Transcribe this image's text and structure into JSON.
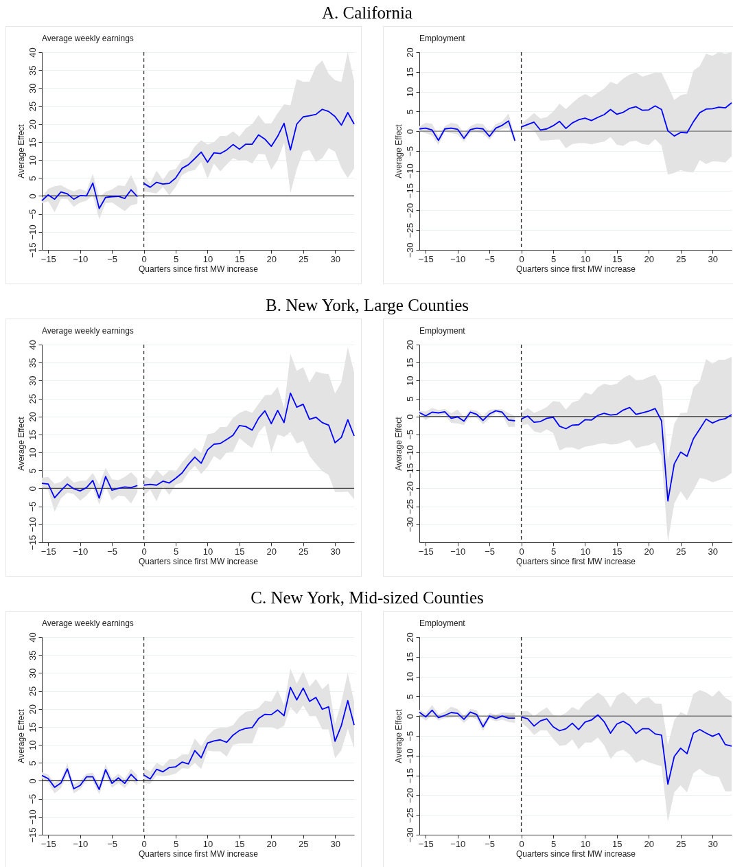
{
  "chart_data": [
    {
      "type": "line",
      "title": "A. California",
      "subtitle": "Average weekly earnings",
      "xlabel": "Quarters since first MW increase",
      "ylabel": "Average Effect",
      "xlim": [
        -16,
        33
      ],
      "xticks": [
        -15,
        -10,
        -5,
        0,
        5,
        10,
        15,
        20,
        25,
        30
      ],
      "ylim": [
        -15,
        40
      ],
      "yticks": [
        -15,
        -10,
        -5,
        0,
        5,
        10,
        15,
        20,
        25,
        30,
        35,
        40
      ],
      "grid": "y",
      "line_style": "solid",
      "ref_lines": [
        {
          "axis": "x",
          "value": 0,
          "color": "#333333",
          "line_style": "dashed"
        },
        {
          "axis": "y",
          "value": 0,
          "color": "#222222"
        }
      ],
      "series": [
        {
          "color": "#0000ff",
          "x": [
            -16,
            -15,
            -14,
            -13,
            -12,
            -11,
            -10,
            -9,
            -8,
            -7,
            -6,
            -5,
            -4,
            -3,
            -2,
            -1
          ],
          "values": [
            -1.3,
            0.3,
            -0.9,
            1.1,
            0.6,
            -0.9,
            0.1,
            0,
            3.6,
            -3.5,
            -0.4,
            -0.2,
            -0.1,
            -0.7,
            1.7,
            -0.2
          ],
          "lower": [
            -2,
            -1.5,
            -4.5,
            -0.8,
            -0.8,
            -3,
            -1.8,
            -1.3,
            0.3,
            -6.5,
            -2,
            -1.8,
            -3,
            -4.2,
            -2.6,
            -2.2
          ],
          "upper": [
            -0.5,
            2,
            2.7,
            3,
            2,
            1.3,
            2,
            1.3,
            6.2,
            -0.5,
            1.2,
            1.8,
            3,
            2.7,
            5.8,
            2
          ]
        },
        {
          "color": "#0000ff",
          "x": [
            0,
            1,
            2,
            3,
            4,
            5,
            6,
            7,
            8,
            9,
            10,
            11,
            12,
            13,
            14,
            15,
            16,
            17,
            18,
            19,
            20,
            21,
            22,
            23,
            24,
            25,
            26,
            27,
            28,
            29,
            30,
            31,
            32,
            33
          ],
          "values": [
            3.5,
            2.4,
            3.8,
            3.3,
            3.5,
            5,
            7.7,
            8.7,
            10.4,
            12.2,
            9.4,
            12,
            11.8,
            12.8,
            14.3,
            13,
            14.4,
            14.4,
            17,
            15.8,
            13.8,
            16.6,
            20.2,
            12.8,
            20,
            22,
            22.3,
            22.7,
            24.1,
            23.5,
            22.1,
            19.7,
            23.2,
            20
          ],
          "lower": [
            1.2,
            1,
            0.7,
            2.5,
            0.2,
            2.5,
            5.8,
            6.8,
            7.2,
            9.5,
            4.8,
            9,
            6.8,
            8.8,
            10.5,
            9.8,
            10,
            9,
            11.7,
            11.6,
            7.3,
            10,
            14.8,
            0.8,
            7.5,
            12.3,
            12.8,
            9.5,
            10.5,
            13.3,
            12.3,
            7.8,
            5,
            7.7
          ],
          "upper": [
            5.8,
            3.5,
            7,
            4.5,
            7,
            7.5,
            10,
            10.8,
            13.8,
            15.5,
            14.3,
            15,
            16.7,
            16.7,
            18,
            16.5,
            18.8,
            20,
            22.5,
            20.2,
            20.2,
            23,
            25.5,
            25.2,
            32.5,
            31.8,
            31.8,
            36,
            37.7,
            34,
            32.2,
            31.7,
            40,
            32
          ]
        }
      ]
    },
    {
      "type": "line",
      "subtitle": "Employment",
      "xlabel": "Quarters since first MW increase",
      "ylabel": "Average Effect",
      "xlim": [
        -16,
        33
      ],
      "xticks": [
        -15,
        -10,
        -5,
        0,
        5,
        10,
        15,
        20,
        25,
        30
      ],
      "ylim": [
        -30,
        20
      ],
      "yticks": [
        -30,
        -25,
        -20,
        -15,
        -10,
        -5,
        0,
        5,
        10,
        15,
        20
      ],
      "grid": "y",
      "line_style": "solid",
      "ref_lines": [
        {
          "axis": "x",
          "value": 0,
          "color": "#222222",
          "line_style": "dashed"
        },
        {
          "axis": "y",
          "value": 0,
          "color": "#777777"
        }
      ],
      "series": [
        {
          "color": "#0000ff",
          "x": [
            -16,
            -15,
            -14,
            -13,
            -12,
            -11,
            -10,
            -9,
            -8,
            -7,
            -6,
            -5,
            -4,
            -3,
            -2,
            -1
          ],
          "values": [
            0.6,
            0.8,
            0.3,
            -2.3,
            0.6,
            0.8,
            0.5,
            -1.8,
            0.4,
            0.8,
            0.6,
            -1.3,
            0.8,
            1.5,
            2.6,
            -2.4
          ],
          "lower": [
            0,
            -0.5,
            -1.1,
            -3.5,
            -0.1,
            -0.5,
            -0.8,
            -2.6,
            -0.4,
            -0.3,
            -0.6,
            -2.2,
            -0.2,
            0.6,
            0.8,
            -3
          ],
          "upper": [
            1.3,
            2.1,
            1.9,
            -1.2,
            1.3,
            2.1,
            1.8,
            -0.5,
            1.3,
            2,
            1.8,
            -0.2,
            1.8,
            2.5,
            4.5,
            -1.5
          ]
        },
        {
          "color": "#0000ff",
          "x": [
            0,
            1,
            2,
            3,
            4,
            5,
            6,
            7,
            8,
            9,
            10,
            11,
            12,
            13,
            14,
            15,
            16,
            17,
            18,
            19,
            20,
            21,
            22,
            23,
            24,
            25,
            26,
            27,
            28,
            29,
            30,
            31,
            32,
            33
          ],
          "values": [
            1.1,
            1.7,
            2.3,
            0.3,
            0.6,
            1.4,
            2.5,
            0.7,
            2.1,
            2.9,
            3.3,
            2.7,
            3.5,
            4.2,
            5.5,
            4.3,
            4.8,
            5.8,
            6.2,
            5.3,
            5.4,
            6.4,
            5.5,
            0.1,
            -1.2,
            -0.3,
            -0.4,
            2.4,
            4.7,
            5.6,
            5.7,
            6.1,
            5.9,
            7.2
          ],
          "lower": [
            0.5,
            0.5,
            0.2,
            -2.4,
            -2.3,
            -2.2,
            -2.1,
            -4.3,
            -3.2,
            -3,
            -3,
            -3.3,
            -2.9,
            -2.6,
            -1.5,
            -3.4,
            -3.7,
            -2.6,
            -2.4,
            -3.2,
            -3.5,
            -2,
            -3.6,
            -11,
            -10.5,
            -9.8,
            -10.3,
            -10.4,
            -7.3,
            -8.3,
            -7.6,
            -7.7,
            -7.9,
            -6.3
          ],
          "upper": [
            2,
            3.2,
            4.6,
            3.2,
            3.6,
            5,
            7,
            5.6,
            7.1,
            8.5,
            9.4,
            8.6,
            9.7,
            10.8,
            12.5,
            11.9,
            13.3,
            14.3,
            14.9,
            13.8,
            14.3,
            14.9,
            14.8,
            11.5,
            7.9,
            9.1,
            9.5,
            15.3,
            16.5,
            19.6,
            19.1,
            20,
            19.6,
            20
          ]
        }
      ]
    },
    {
      "type": "line",
      "title": "B. New York, Large Counties",
      "subtitle": "Average weekly earnings",
      "xlabel": "Quarters since first MW increase",
      "ylabel": "Average Effect",
      "xlim": [
        -16,
        33
      ],
      "xticks": [
        -15,
        -10,
        -5,
        0,
        5,
        10,
        15,
        20,
        25,
        30
      ],
      "ylim": [
        -15,
        40
      ],
      "yticks": [
        -15,
        -10,
        -5,
        0,
        5,
        10,
        15,
        20,
        25,
        30,
        35,
        40
      ],
      "grid": "y",
      "line_style": "solid",
      "ref_lines": [
        {
          "axis": "x",
          "value": 0,
          "color": "#333333",
          "line_style": "dashed"
        },
        {
          "axis": "y",
          "value": 0,
          "color": "#444444"
        }
      ],
      "series": [
        {
          "color": "#0000ff",
          "x": [
            -16,
            -15,
            -14,
            -13,
            -12,
            -11,
            -10,
            -9,
            -8,
            -7,
            -6,
            -5,
            -4,
            -3,
            -2,
            -1
          ],
          "values": [
            1.4,
            1.2,
            -2.6,
            -0.6,
            1.2,
            -0.1,
            -0.7,
            0.2,
            2.2,
            -2.7,
            3.3,
            -0.5,
            0,
            0.4,
            0.2,
            0.8
          ],
          "lower": [
            0,
            -0.5,
            -6.5,
            -2.8,
            -1.2,
            -1.6,
            -3.4,
            -2,
            0.2,
            -4.5,
            0.5,
            -3.3,
            -2,
            -2.2,
            -4.2,
            -1
          ],
          "upper": [
            3,
            3.2,
            1.3,
            1.8,
            3.5,
            1.6,
            2.1,
            2.2,
            4.3,
            1,
            5.7,
            2.5,
            2.3,
            3.2,
            4.5,
            2.7
          ]
        },
        {
          "color": "#0000ff",
          "x": [
            0,
            1,
            2,
            3,
            4,
            5,
            6,
            7,
            8,
            9,
            10,
            11,
            12,
            13,
            14,
            15,
            16,
            17,
            18,
            19,
            20,
            21,
            22,
            23,
            24,
            25,
            26,
            27,
            28,
            29,
            30,
            31,
            32,
            33
          ],
          "values": [
            0.9,
            1.1,
            0.9,
            2,
            1.5,
            2.8,
            4.3,
            6.7,
            8.7,
            7,
            10.7,
            12.3,
            12.5,
            13.6,
            14.8,
            17.5,
            17.2,
            16.2,
            19.5,
            21.6,
            18,
            21.7,
            18.3,
            26.5,
            22.6,
            23.4,
            19.2,
            19.8,
            18.3,
            17.6,
            12.7,
            14.2,
            19.1,
            14.6
          ],
          "lower": [
            -2,
            -0.3,
            -3.6,
            0.5,
            -1.8,
            1,
            1.7,
            4.5,
            6.3,
            4,
            6,
            9,
            7.8,
            10,
            10.2,
            14,
            12.5,
            11.2,
            15.5,
            17.5,
            10,
            15.1,
            14.3,
            15.7,
            12.5,
            13.2,
            9,
            6.8,
            4.8,
            3.7,
            -1,
            -1,
            -0.9,
            -3
          ],
          "upper": [
            3.6,
            2.6,
            5.2,
            3.4,
            5,
            4.7,
            7.2,
            9.3,
            11.3,
            9.8,
            15.1,
            15.4,
            17.1,
            17.1,
            19.6,
            21,
            21.7,
            21,
            23.5,
            25.9,
            26,
            28.2,
            22.4,
            37.4,
            32.7,
            33.7,
            29.4,
            32.5,
            32,
            31.8,
            26.4,
            29.5,
            39.3,
            32.2
          ]
        }
      ]
    },
    {
      "type": "line",
      "subtitle": "Employment",
      "xlabel": "Quarters since first MW increase",
      "ylabel": "Average Effect",
      "xlim": [
        -16,
        33
      ],
      "xticks": [
        -15,
        -10,
        -5,
        0,
        5,
        10,
        15,
        20,
        25,
        30
      ],
      "ylim": [
        -35,
        20
      ],
      "yticks": [
        -30,
        -25,
        -20,
        -15,
        -10,
        -5,
        0,
        5,
        10,
        15,
        20
      ],
      "grid": "y",
      "line_style": "solid",
      "ref_lines": [
        {
          "axis": "x",
          "value": 0,
          "color": "#222222",
          "line_style": "dashed"
        },
        {
          "axis": "y",
          "value": 0,
          "color": "#555555"
        }
      ],
      "series": [
        {
          "color": "#0000ff",
          "x": [
            -16,
            -15,
            -14,
            -13,
            -12,
            -11,
            -10,
            -9,
            -8,
            -7,
            -6,
            -5,
            -4,
            -3,
            -2,
            -1
          ],
          "values": [
            1.1,
            0.2,
            1.2,
            1,
            1.3,
            -0.5,
            -0.1,
            -1.3,
            1.2,
            0.6,
            -1.1,
            0.7,
            1.6,
            1.2,
            -1,
            -1.2
          ],
          "lower": [
            0.5,
            -1,
            0.2,
            0.1,
            0.5,
            -1.8,
            -1.9,
            -2.4,
            0.3,
            -0.4,
            -2.2,
            -0.6,
            1,
            0.4,
            -2.9,
            -2.8
          ],
          "upper": [
            1.6,
            1.4,
            2.4,
            1.8,
            2.1,
            0.9,
            1.9,
            -0.2,
            1.9,
            1.6,
            0.2,
            1.9,
            2,
            2,
            0.9,
            0.2
          ]
        },
        {
          "color": "#0000ff",
          "x": [
            0,
            1,
            2,
            3,
            4,
            5,
            6,
            7,
            8,
            9,
            10,
            11,
            12,
            13,
            14,
            15,
            16,
            17,
            18,
            19,
            20,
            21,
            22,
            23,
            24,
            25,
            26,
            27,
            28,
            29,
            30,
            31,
            32,
            33
          ],
          "values": [
            -0.7,
            0.1,
            -1.6,
            -1.4,
            -0.5,
            -0.2,
            -2.7,
            -3.4,
            -2.4,
            -2.3,
            -0.9,
            -1,
            0.3,
            0.9,
            0.4,
            0.6,
            1.8,
            2.5,
            0.6,
            1,
            1.5,
            2.2,
            -1.2,
            -23.5,
            -13.2,
            -9.9,
            -11.1,
            -6.2,
            -3.5,
            -0.7,
            -1.8,
            -1,
            -0.6,
            0.5
          ],
          "lower": [
            -2.5,
            -2.1,
            -4.1,
            -4.6,
            -3.6,
            -4.6,
            -9.5,
            -8.6,
            -8.6,
            -9.2,
            -8.4,
            -8.1,
            -7.7,
            -7.4,
            -7.8,
            -7.7,
            -7.1,
            -6.5,
            -8.8,
            -8.3,
            -8,
            -7.2,
            -11,
            -34.8,
            -24.2,
            -20.8,
            -23.3,
            -20.5,
            -17.1,
            -17.5,
            -18.3,
            -17.7,
            -17,
            -15.7
          ],
          "upper": [
            1,
            2.4,
            1,
            1.7,
            2.6,
            4.3,
            4.1,
            1.9,
            3.9,
            4.5,
            6.7,
            6.1,
            8.1,
            9.1,
            8.7,
            9.1,
            10.7,
            11.6,
            10.1,
            10.2,
            11,
            11.6,
            8.4,
            -12,
            -2,
            1,
            1.1,
            8.1,
            9.8,
            16,
            14.7,
            15.8,
            15.8,
            16.6
          ]
        }
      ]
    },
    {
      "type": "line",
      "title": "C. New York, Mid-sized Counties",
      "subtitle": "Average weekly earnings",
      "xlabel": "Quarters since first MW increase",
      "ylabel": "Average Effect",
      "xlim": [
        -16,
        33
      ],
      "xticks": [
        -15,
        -10,
        -5,
        0,
        5,
        10,
        15,
        20,
        25,
        30
      ],
      "ylim": [
        -15,
        40
      ],
      "yticks": [
        -15,
        -10,
        -5,
        0,
        5,
        10,
        15,
        20,
        25,
        30,
        35,
        40
      ],
      "grid": "y",
      "line_style": "solid",
      "ref_lines": [
        {
          "axis": "x",
          "value": 0,
          "color": "#333333",
          "line_style": "dashed"
        },
        {
          "axis": "y",
          "value": 0,
          "color": "#111111"
        }
      ],
      "series": [
        {
          "color": "#0000ff",
          "x": [
            -16,
            -15,
            -14,
            -13,
            -12,
            -11,
            -10,
            -9,
            -8,
            -7,
            -6,
            -5,
            -4,
            -3,
            -2,
            -1
          ],
          "values": [
            1.5,
            0.6,
            -1.8,
            -0.6,
            3.3,
            -2.2,
            -1.3,
            1.1,
            1.1,
            -2.4,
            3.1,
            -0.7,
            0.8,
            -0.7,
            1.8,
            0
          ],
          "lower": [
            0.6,
            -0.5,
            -3.5,
            -2,
            1.8,
            -3.5,
            -2.4,
            0,
            -0.1,
            -3.8,
            1.5,
            -1.9,
            -0.6,
            -2,
            0.2,
            -1.3
          ],
          "upper": [
            2.4,
            1.7,
            -0.6,
            0.5,
            4.8,
            -1,
            0,
            2,
            2.3,
            -1,
            4.6,
            0.6,
            2,
            0.5,
            3.4,
            1.4
          ]
        },
        {
          "color": "#0000ff",
          "x": [
            0,
            1,
            2,
            3,
            4,
            5,
            6,
            7,
            8,
            9,
            10,
            11,
            12,
            13,
            14,
            15,
            16,
            17,
            18,
            19,
            20,
            21,
            22,
            23,
            24,
            25,
            26,
            27,
            28,
            29,
            30,
            31,
            32,
            33
          ],
          "values": [
            1.6,
            0.5,
            3.2,
            2.5,
            3.7,
            3.9,
            5.2,
            4.7,
            8.4,
            6.4,
            10.5,
            11.1,
            11.4,
            10.7,
            12.7,
            14,
            14.6,
            14.8,
            17.3,
            18.5,
            18.4,
            19.7,
            18.1,
            26,
            22.5,
            25.8,
            22.1,
            23.2,
            19.9,
            20.6,
            11,
            15.4,
            22.3,
            15.5
          ],
          "lower": [
            -0.7,
            -0.8,
            1.5,
            1.3,
            1.5,
            2,
            3.5,
            3.4,
            5,
            3.3,
            8.4,
            8.2,
            8.2,
            6.7,
            10,
            10.4,
            10.4,
            10.4,
            15,
            15,
            15,
            14.3,
            15.3,
            20.5,
            18.5,
            21,
            18,
            18,
            14.3,
            14.3,
            6.3,
            8.5,
            14.5,
            9
          ],
          "upper": [
            3.6,
            2.5,
            5,
            4.1,
            6,
            6,
            7.3,
            7.4,
            11.8,
            9.5,
            12.5,
            14.2,
            14.8,
            14.8,
            15.5,
            17.8,
            19.2,
            19.5,
            20.3,
            22.3,
            22,
            25.3,
            21,
            31.2,
            27,
            30.5,
            26.2,
            28.3,
            25.5,
            27.1,
            15.8,
            22,
            30,
            22
          ]
        }
      ]
    },
    {
      "type": "line",
      "subtitle": "Employment",
      "xlabel": "Quarters since first MW increase",
      "ylabel": "Average Effect",
      "xlim": [
        -16,
        33
      ],
      "xticks": [
        -15,
        -10,
        -5,
        0,
        5,
        10,
        15,
        20,
        25,
        30
      ],
      "ylim": [
        -30,
        20
      ],
      "yticks": [
        -30,
        -25,
        -20,
        -15,
        -10,
        -5,
        0,
        5,
        10,
        15,
        20
      ],
      "grid": "y",
      "line_style": "solid",
      "ref_lines": [
        {
          "axis": "x",
          "value": 0,
          "color": "#222222",
          "line_style": "dashed"
        },
        {
          "axis": "y",
          "value": 0,
          "color": "#666666"
        }
      ],
      "series": [
        {
          "color": "#0000ff",
          "x": [
            -16,
            -15,
            -14,
            -13,
            -12,
            -11,
            -10,
            -9,
            -8,
            -7,
            -6,
            -5,
            -4,
            -3,
            -2,
            -1
          ],
          "values": [
            1,
            -0.2,
            1.5,
            -0.4,
            0.2,
            0.9,
            0.7,
            -0.8,
            1,
            0.4,
            -2.7,
            0,
            -0.6,
            0,
            -0.5,
            -0.5
          ],
          "lower": [
            0.2,
            -1.2,
            0.3,
            -1.1,
            -0.5,
            -0.4,
            -0.2,
            -1.8,
            -0.2,
            -0.8,
            -3.8,
            -0.7,
            -1.3,
            -0.9,
            -1.5,
            -1.7
          ],
          "upper": [
            1.6,
            0.7,
            2.8,
            0.5,
            1.1,
            2.4,
            1.8,
            0.1,
            1.8,
            1.5,
            -1.5,
            0.8,
            0.4,
            0.9,
            0.8,
            0.8
          ]
        },
        {
          "color": "#0000ff",
          "x": [
            0,
            1,
            2,
            3,
            4,
            5,
            6,
            7,
            8,
            9,
            10,
            11,
            12,
            13,
            14,
            15,
            16,
            17,
            18,
            19,
            20,
            21,
            22,
            23,
            24,
            25,
            26,
            27,
            28,
            29,
            30,
            31,
            32,
            33
          ],
          "values": [
            -0.2,
            -0.7,
            -2.5,
            -1.2,
            -0.7,
            -2.7,
            -3.7,
            -3.2,
            -1.8,
            -3.4,
            -1.5,
            -1,
            0.3,
            -1.4,
            -4.3,
            -2,
            -1.3,
            -2.3,
            -4.4,
            -3.2,
            -3.2,
            -4.5,
            -4.8,
            -17.2,
            -10.2,
            -8.1,
            -9.5,
            -4.3,
            -3.4,
            -4.3,
            -5.1,
            -4.4,
            -7.2,
            -7.6
          ],
          "lower": [
            -1.7,
            -2.9,
            -4.8,
            -3.6,
            -3.6,
            -5.8,
            -7.5,
            -7.3,
            -5.9,
            -8.4,
            -6.7,
            -6.7,
            -5.4,
            -7.4,
            -10.8,
            -9,
            -8.5,
            -9.7,
            -11.8,
            -11,
            -11.7,
            -12.2,
            -12.7,
            -26.7,
            -19.3,
            -17.5,
            -19.3,
            -14.4,
            -13.3,
            -14.6,
            -15.1,
            -15.4,
            -19,
            -19
          ],
          "upper": [
            1.3,
            1.3,
            0,
            1.2,
            2.2,
            0.3,
            0,
            0.8,
            2.3,
            1.5,
            3.5,
            4.6,
            6,
            4.8,
            2.2,
            5.2,
            6.1,
            4.8,
            3,
            4.5,
            4.8,
            3.2,
            3.1,
            -7.3,
            -1,
            1,
            0.3,
            5.6,
            6.6,
            6,
            4.9,
            6.5,
            4.7,
            3.7
          ]
        }
      ]
    }
  ]
}
